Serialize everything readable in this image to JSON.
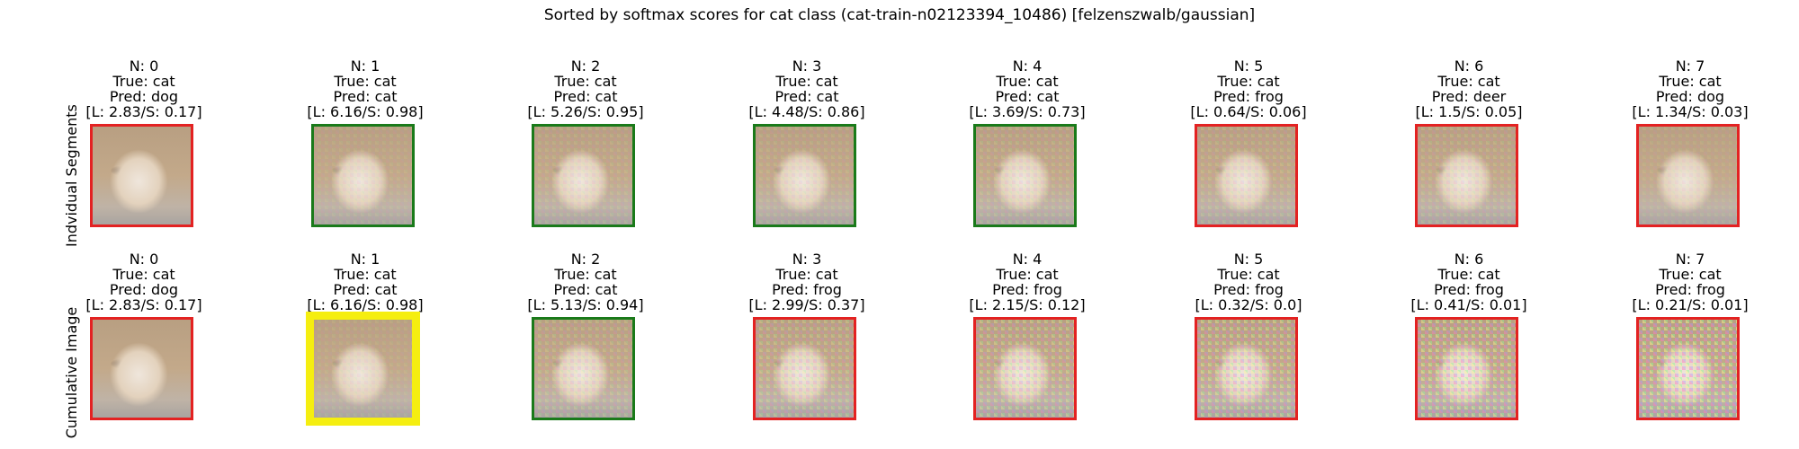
{
  "title": "Sorted by softmax scores for cat class (cat-train-n02123394_10486) [felzenszwalb/gaussian]",
  "rows": [
    {
      "label": "Indvidual Segments",
      "panels": [
        {
          "n": "N: 0",
          "true": "True: cat",
          "pred": "Pred: dog",
          "scores": "[L: 2.83/S: 0.17]",
          "border": "red",
          "noise": 0
        },
        {
          "n": "N: 1",
          "true": "True: cat",
          "pred": "Pred: cat",
          "scores": "[L: 6.16/S: 0.98]",
          "border": "green",
          "noise": 0.15
        },
        {
          "n": "N: 2",
          "true": "True: cat",
          "pred": "Pred: cat",
          "scores": "[L: 5.26/S: 0.95]",
          "border": "green",
          "noise": 0.2
        },
        {
          "n": "N: 3",
          "true": "True: cat",
          "pred": "Pred: cat",
          "scores": "[L: 4.48/S: 0.86]",
          "border": "green",
          "noise": 0.2
        },
        {
          "n": "N: 4",
          "true": "True: cat",
          "pred": "Pred: cat",
          "scores": "[L: 3.69/S: 0.73]",
          "border": "green",
          "noise": 0.25
        },
        {
          "n": "N: 5",
          "true": "True: cat",
          "pred": "Pred: frog",
          "scores": "[L: 0.64/S: 0.06]",
          "border": "red",
          "noise": 0.25
        },
        {
          "n": "N: 6",
          "true": "True: cat",
          "pred": "Pred: deer",
          "scores": "[L: 1.5/S: 0.05]",
          "border": "red",
          "noise": 0.25
        },
        {
          "n": "N: 7",
          "true": "True: cat",
          "pred": "Pred: dog",
          "scores": "[L: 1.34/S: 0.03]",
          "border": "red",
          "noise": 0.15
        }
      ]
    },
    {
      "label": "Cumulative Image",
      "panels": [
        {
          "n": "N: 0",
          "true": "True: cat",
          "pred": "Pred: dog",
          "scores": "[L: 2.83/S: 0.17]",
          "border": "red",
          "noise": 0
        },
        {
          "n": "N: 1",
          "true": "True: cat",
          "pred": "Pred: cat",
          "scores": "[L: 6.16/S: 0.98]",
          "border": "yellow",
          "noise": 0.15
        },
        {
          "n": "N: 2",
          "true": "True: cat",
          "pred": "Pred: cat",
          "scores": "[L: 5.13/S: 0.94]",
          "border": "green",
          "noise": 0.3
        },
        {
          "n": "N: 3",
          "true": "True: cat",
          "pred": "Pred: frog",
          "scores": "[L: 2.99/S: 0.37]",
          "border": "red",
          "noise": 0.4
        },
        {
          "n": "N: 4",
          "true": "True: cat",
          "pred": "Pred: frog",
          "scores": "[L: 2.15/S: 0.12]",
          "border": "red",
          "noise": 0.5
        },
        {
          "n": "N: 5",
          "true": "True: cat",
          "pred": "Pred: frog",
          "scores": "[L: 0.32/S: 0.0]",
          "border": "red",
          "noise": 0.6
        },
        {
          "n": "N: 6",
          "true": "True: cat",
          "pred": "Pred: frog",
          "scores": "[L: 0.41/S: 0.01]",
          "border": "red",
          "noise": 0.7
        },
        {
          "n": "N: 7",
          "true": "True: cat",
          "pred": "Pred: frog",
          "scores": "[L: 0.21/S: 0.01]",
          "border": "red",
          "noise": 0.8
        }
      ]
    }
  ],
  "colors": {
    "correct": "#1a7a1a",
    "incorrect": "#e32222",
    "best": "#f5ee10"
  }
}
